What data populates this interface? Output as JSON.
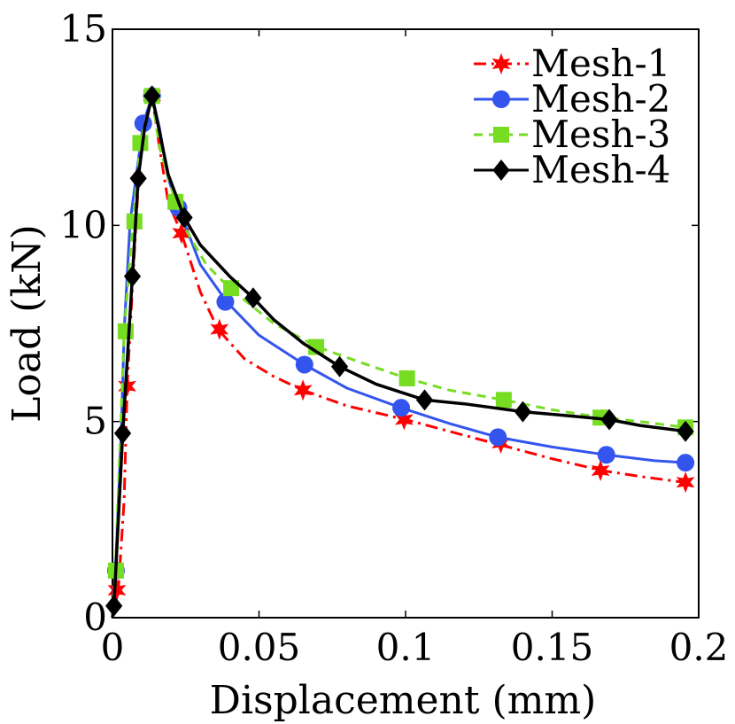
{
  "chart_data": {
    "type": "line",
    "title": "",
    "xlabel": "Displacement (mm)",
    "ylabel": "Load (kN)",
    "xlim": [
      0,
      0.2
    ],
    "ylim": [
      0,
      15
    ],
    "xticks": [
      0,
      0.05,
      0.1,
      0.15,
      0.2
    ],
    "xtick_labels": [
      "0",
      "0.05",
      "0.1",
      "0.15",
      "0.2"
    ],
    "yticks": [
      0,
      5,
      10,
      15
    ],
    "ytick_labels": [
      "0",
      "5",
      "10",
      "15"
    ],
    "grid": false,
    "legend_position": "top-right",
    "series": [
      {
        "name": "Mesh-1",
        "color": "#ff0000",
        "line_style": "dashdot",
        "marker": "star",
        "line": [
          [
            0,
            0
          ],
          [
            0.002,
            0.7
          ],
          [
            0.004,
            3.0
          ],
          [
            0.005,
            5.9
          ],
          [
            0.007,
            8.7
          ],
          [
            0.009,
            11.3
          ],
          [
            0.011,
            12.6
          ],
          [
            0.0135,
            13.3
          ],
          [
            0.016,
            12.0
          ],
          [
            0.019,
            10.6
          ],
          [
            0.0235,
            9.8
          ],
          [
            0.03,
            8.3
          ],
          [
            0.036,
            7.35
          ],
          [
            0.045,
            6.6
          ],
          [
            0.055,
            6.15
          ],
          [
            0.065,
            5.8
          ],
          [
            0.08,
            5.4
          ],
          [
            0.1,
            5.05
          ],
          [
            0.12,
            4.65
          ],
          [
            0.13,
            4.45
          ],
          [
            0.15,
            4.05
          ],
          [
            0.167,
            3.75
          ],
          [
            0.18,
            3.6
          ],
          [
            0.195,
            3.45
          ]
        ],
        "markers": [
          [
            0.0015,
            0.7
          ],
          [
            0.005,
            5.9
          ],
          [
            0.0135,
            13.3
          ],
          [
            0.0235,
            9.8
          ],
          [
            0.0365,
            7.35
          ],
          [
            0.065,
            5.8
          ],
          [
            0.0995,
            5.05
          ],
          [
            0.1325,
            4.45
          ],
          [
            0.1665,
            3.75
          ],
          [
            0.1955,
            3.45
          ]
        ]
      },
      {
        "name": "Mesh-2",
        "color": "#3355ee",
        "line_style": "solid",
        "marker": "circle",
        "line": [
          [
            0,
            0
          ],
          [
            0.001,
            1.2
          ],
          [
            0.003,
            4.7
          ],
          [
            0.004,
            7.3
          ],
          [
            0.006,
            10.1
          ],
          [
            0.008,
            11.2
          ],
          [
            0.0105,
            12.6
          ],
          [
            0.0135,
            13.3
          ],
          [
            0.016,
            12.5
          ],
          [
            0.019,
            11.2
          ],
          [
            0.0225,
            10.45
          ],
          [
            0.03,
            9.0
          ],
          [
            0.039,
            8.05
          ],
          [
            0.05,
            7.2
          ],
          [
            0.0655,
            6.45
          ],
          [
            0.08,
            5.85
          ],
          [
            0.0985,
            5.35
          ],
          [
            0.115,
            4.95
          ],
          [
            0.1315,
            4.6
          ],
          [
            0.15,
            4.35
          ],
          [
            0.1685,
            4.15
          ],
          [
            0.185,
            4.0
          ],
          [
            0.1955,
            3.95
          ]
        ],
        "markers": [
          [
            0.0012,
            1.2
          ],
          [
            0.0105,
            12.6
          ],
          [
            0.0135,
            13.3
          ],
          [
            0.0225,
            10.45
          ],
          [
            0.0385,
            8.05
          ],
          [
            0.0655,
            6.45
          ],
          [
            0.0985,
            5.35
          ],
          [
            0.1315,
            4.6
          ],
          [
            0.1685,
            4.15
          ],
          [
            0.1955,
            3.95
          ]
        ]
      },
      {
        "name": "Mesh-3",
        "color": "#77dd22",
        "line_style": "dashed",
        "marker": "square",
        "line": [
          [
            0,
            0
          ],
          [
            0.001,
            1.2
          ],
          [
            0.004,
            7.3
          ],
          [
            0.007,
            10.1
          ],
          [
            0.0095,
            12.1
          ],
          [
            0.0135,
            13.3
          ],
          [
            0.016,
            12.0
          ],
          [
            0.0215,
            10.6
          ],
          [
            0.025,
            9.9
          ],
          [
            0.032,
            9.0
          ],
          [
            0.04,
            8.4
          ],
          [
            0.055,
            7.5
          ],
          [
            0.07,
            6.9
          ],
          [
            0.085,
            6.5
          ],
          [
            0.1005,
            6.1
          ],
          [
            0.115,
            5.8
          ],
          [
            0.1335,
            5.55
          ],
          [
            0.15,
            5.3
          ],
          [
            0.167,
            5.1
          ],
          [
            0.18,
            5.0
          ],
          [
            0.1955,
            4.85
          ]
        ],
        "markers": [
          [
            0.0012,
            1.2
          ],
          [
            0.0045,
            7.3
          ],
          [
            0.0075,
            10.1
          ],
          [
            0.0095,
            12.1
          ],
          [
            0.0135,
            13.3
          ],
          [
            0.0215,
            10.6
          ],
          [
            0.0405,
            8.4
          ],
          [
            0.0695,
            6.9
          ],
          [
            0.1005,
            6.1
          ],
          [
            0.1335,
            5.55
          ],
          [
            0.1665,
            5.1
          ],
          [
            0.1955,
            4.85
          ]
        ]
      },
      {
        "name": "Mesh-4",
        "color": "#000000",
        "line_style": "solid",
        "marker": "diamond",
        "line": [
          [
            0,
            0
          ],
          [
            0.0005,
            0.3
          ],
          [
            0.0035,
            4.7
          ],
          [
            0.0068,
            8.7
          ],
          [
            0.0088,
            11.2
          ],
          [
            0.011,
            12.5
          ],
          [
            0.0135,
            13.3
          ],
          [
            0.016,
            12.4
          ],
          [
            0.019,
            11.3
          ],
          [
            0.0245,
            10.2
          ],
          [
            0.03,
            9.5
          ],
          [
            0.04,
            8.7
          ],
          [
            0.048,
            8.15
          ],
          [
            0.055,
            7.6
          ],
          [
            0.065,
            7.0
          ],
          [
            0.0775,
            6.4
          ],
          [
            0.09,
            5.95
          ],
          [
            0.1065,
            5.55
          ],
          [
            0.12,
            5.45
          ],
          [
            0.14,
            5.25
          ],
          [
            0.155,
            5.15
          ],
          [
            0.1695,
            5.05
          ],
          [
            0.18,
            4.9
          ],
          [
            0.1955,
            4.75
          ]
        ],
        "markers": [
          [
            0.0005,
            0.3
          ],
          [
            0.0035,
            4.7
          ],
          [
            0.0068,
            8.7
          ],
          [
            0.0088,
            11.2
          ],
          [
            0.0135,
            13.3
          ],
          [
            0.0245,
            10.2
          ],
          [
            0.048,
            8.15
          ],
          [
            0.0775,
            6.4
          ],
          [
            0.1065,
            5.55
          ],
          [
            0.14,
            5.25
          ],
          [
            0.1695,
            5.05
          ],
          [
            0.1955,
            4.75
          ]
        ]
      }
    ]
  }
}
